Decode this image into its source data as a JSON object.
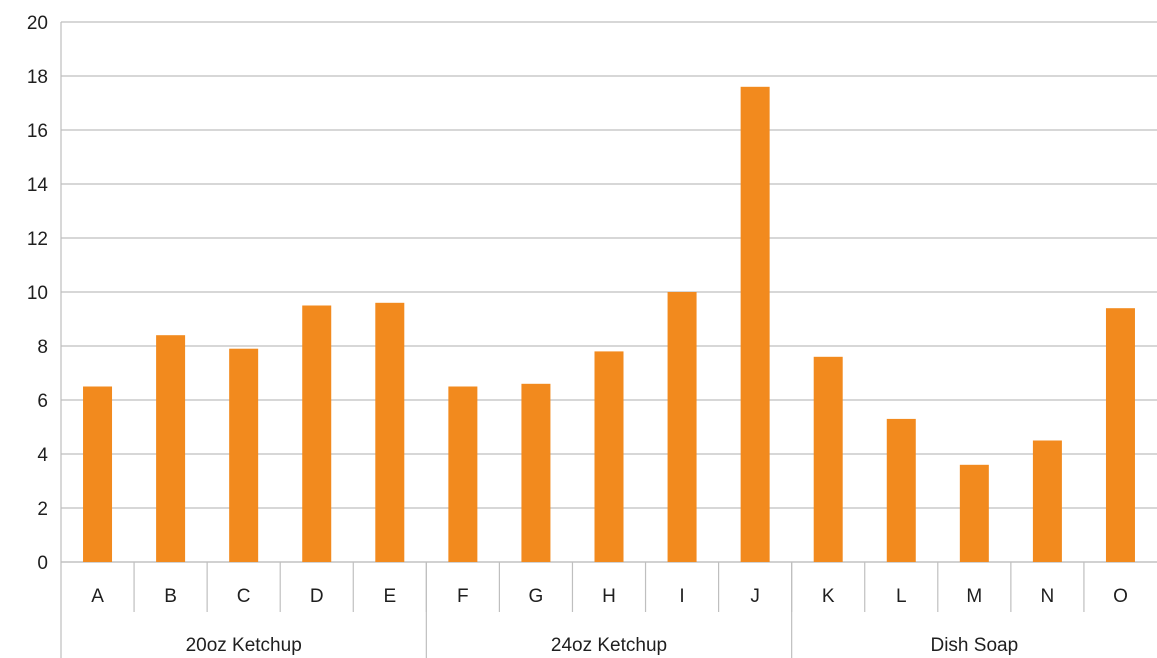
{
  "chart_data": {
    "type": "bar",
    "title": "",
    "xlabel": "",
    "ylabel": "",
    "ylim": [
      0,
      20
    ],
    "y_ticks": [
      0,
      2,
      4,
      6,
      8,
      10,
      12,
      14,
      16,
      18,
      20
    ],
    "grid": true,
    "legend": "none",
    "bar_color": "#F28A1E",
    "grid_color": "#BFBFBF",
    "categories": [
      "A",
      "B",
      "C",
      "D",
      "E",
      "F",
      "G",
      "H",
      "I",
      "J",
      "K",
      "L",
      "M",
      "N",
      "O"
    ],
    "values": [
      6.5,
      8.4,
      7.9,
      9.5,
      9.6,
      6.5,
      6.6,
      7.8,
      10.0,
      17.6,
      7.6,
      5.3,
      3.6,
      4.5,
      9.4
    ],
    "groups": [
      {
        "label": "20oz Ketchup",
        "categories": [
          "A",
          "B",
          "C",
          "D",
          "E"
        ]
      },
      {
        "label": "24oz Ketchup",
        "categories": [
          "F",
          "G",
          "H",
          "I",
          "J"
        ]
      },
      {
        "label": "Dish Soap",
        "categories": [
          "K",
          "L",
          "M",
          "N",
          "O"
        ]
      }
    ]
  }
}
